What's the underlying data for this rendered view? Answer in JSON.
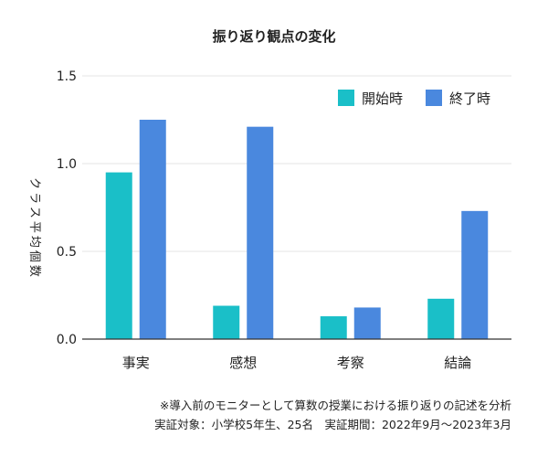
{
  "chart_data": {
    "type": "bar",
    "title": "振り返り観点の変化",
    "xlabel": "",
    "ylabel": "クラス平均個数",
    "categories": [
      "事実",
      "感想",
      "考察",
      "結論"
    ],
    "series": [
      {
        "name": "開始時",
        "color": "#1ABFC8",
        "values": [
          0.95,
          0.19,
          0.13,
          0.23
        ]
      },
      {
        "name": "終了時",
        "color": "#4A88DE",
        "values": [
          1.25,
          1.21,
          0.18,
          0.73
        ]
      }
    ],
    "ylim": [
      0,
      1.5
    ],
    "yticks": [
      "0.0",
      "0.5",
      "1.0",
      "1.5"
    ],
    "grid": true,
    "legend": "top-right"
  },
  "notes": {
    "line1": "※導入前のモニターとして算数の授業における振り返りの記述を分析",
    "line2": "実証対象：小学校5年生、25名　実証期間：2022年9月〜2023年3月"
  }
}
